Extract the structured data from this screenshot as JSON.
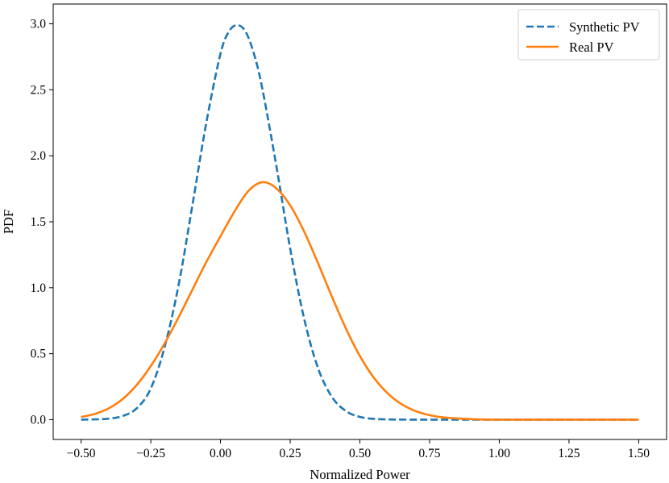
{
  "chart_data": {
    "type": "line",
    "title": "",
    "xlabel": "Normalized Power",
    "ylabel": "PDF",
    "xlim": [
      -0.6,
      1.6
    ],
    "ylim": [
      -0.15,
      3.15
    ],
    "xticks": [
      -0.5,
      -0.25,
      0.0,
      0.25,
      0.5,
      0.75,
      1.0,
      1.25,
      1.5
    ],
    "xtick_labels": [
      "−0.50",
      "−0.25",
      "0.00",
      "0.25",
      "0.50",
      "0.75",
      "1.00",
      "1.25",
      "1.50"
    ],
    "yticks": [
      0.0,
      0.5,
      1.0,
      1.5,
      2.0,
      2.5,
      3.0
    ],
    "ytick_labels": [
      "0.0",
      "0.5",
      "1.0",
      "1.5",
      "2.0",
      "2.5",
      "3.0"
    ],
    "grid": false,
    "legend": {
      "position": "top-right"
    },
    "series": [
      {
        "name": "Synthetic PV",
        "color": "#1f77b4",
        "style": "dashed",
        "x": [
          -0.5,
          -0.45,
          -0.4,
          -0.35,
          -0.3,
          -0.25,
          -0.2,
          -0.15,
          -0.1,
          -0.05,
          0.0,
          0.03,
          0.06,
          0.09,
          0.12,
          0.15,
          0.2,
          0.25,
          0.3,
          0.35,
          0.4,
          0.45,
          0.5,
          0.55,
          0.6,
          0.7,
          0.8,
          1.0,
          1.25,
          1.5
        ],
        "y": [
          0.0,
          0.002,
          0.008,
          0.028,
          0.087,
          0.236,
          0.553,
          1.023,
          1.634,
          2.26,
          2.773,
          2.941,
          2.99,
          2.941,
          2.773,
          2.51,
          1.928,
          1.297,
          0.766,
          0.39,
          0.171,
          0.065,
          0.021,
          0.006,
          0.002,
          0.0,
          0.0,
          0.0,
          0.0,
          0.0
        ]
      },
      {
        "name": "Real PV",
        "color": "#ff7f0e",
        "style": "solid",
        "x": [
          -0.5,
          -0.45,
          -0.4,
          -0.35,
          -0.3,
          -0.25,
          -0.2,
          -0.15,
          -0.1,
          -0.05,
          0.0,
          0.05,
          0.1,
          0.15,
          0.2,
          0.25,
          0.3,
          0.35,
          0.4,
          0.45,
          0.5,
          0.55,
          0.6,
          0.65,
          0.7,
          0.75,
          0.8,
          0.9,
          1.0,
          1.1,
          1.25,
          1.5
        ],
        "y": [
          0.02,
          0.044,
          0.087,
          0.158,
          0.264,
          0.406,
          0.579,
          0.777,
          0.988,
          1.198,
          1.39,
          1.577,
          1.733,
          1.8,
          1.754,
          1.624,
          1.426,
          1.185,
          0.931,
          0.69,
          0.482,
          0.318,
          0.199,
          0.117,
          0.065,
          0.034,
          0.017,
          0.004,
          0.0,
          0.0,
          0.0,
          0.0
        ]
      }
    ]
  }
}
